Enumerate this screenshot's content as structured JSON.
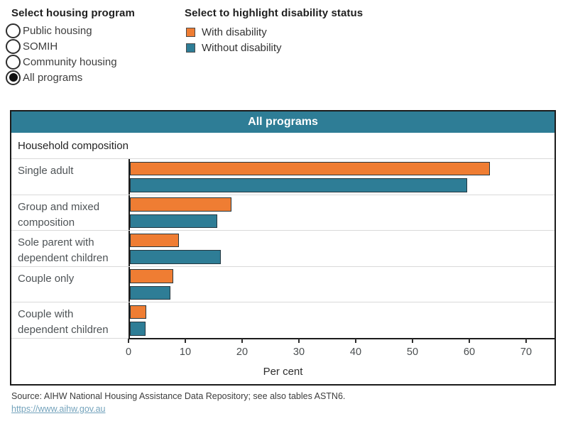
{
  "controls": {
    "program_selector": {
      "title": "Select housing program",
      "options": [
        {
          "label": "Public housing",
          "selected": false
        },
        {
          "label": "SOMIH",
          "selected": false
        },
        {
          "label": "Community housing",
          "selected": false
        },
        {
          "label": "All programs",
          "selected": true
        }
      ]
    },
    "legend": {
      "title": "Select to highlight disability status",
      "items": [
        {
          "label": "With disability",
          "color": "#EF7D33"
        },
        {
          "label": "Without disability",
          "color": "#2E7D96"
        }
      ]
    }
  },
  "chart": {
    "banner": "All programs",
    "subtitle": "Household composition",
    "xlabel": "Per cent"
  },
  "chart_data": {
    "type": "bar",
    "orientation": "horizontal",
    "title": "All programs",
    "group_label": "Household composition",
    "categories": [
      "Single adult",
      "Group and mixed composition",
      "Sole parent with dependent children",
      "Couple only",
      "Couple with dependent children"
    ],
    "series": [
      {
        "name": "With disability",
        "color": "#EF7D33",
        "values": [
          63.4,
          17.9,
          8.6,
          7.6,
          2.9
        ]
      },
      {
        "name": "Without disability",
        "color": "#2E7D96",
        "values": [
          59.4,
          15.4,
          16.0,
          7.1,
          2.8
        ]
      }
    ],
    "xlabel": "Per cent",
    "xlim": [
      0,
      75
    ],
    "xticks": [
      0,
      10,
      20,
      30,
      40,
      50,
      60,
      70
    ],
    "grid": false,
    "legend_position": "top-outside"
  },
  "footer": {
    "source": "Source: AIHW National Housing Assistance Data Repository; see also tables ASTN6.",
    "link": "https://www.aihw.gov.au"
  },
  "colors": {
    "banner_bg": "#2E7D96",
    "bar_border": "#243740",
    "row_separator": "#d9d9d9",
    "link": "#74a3bc"
  }
}
